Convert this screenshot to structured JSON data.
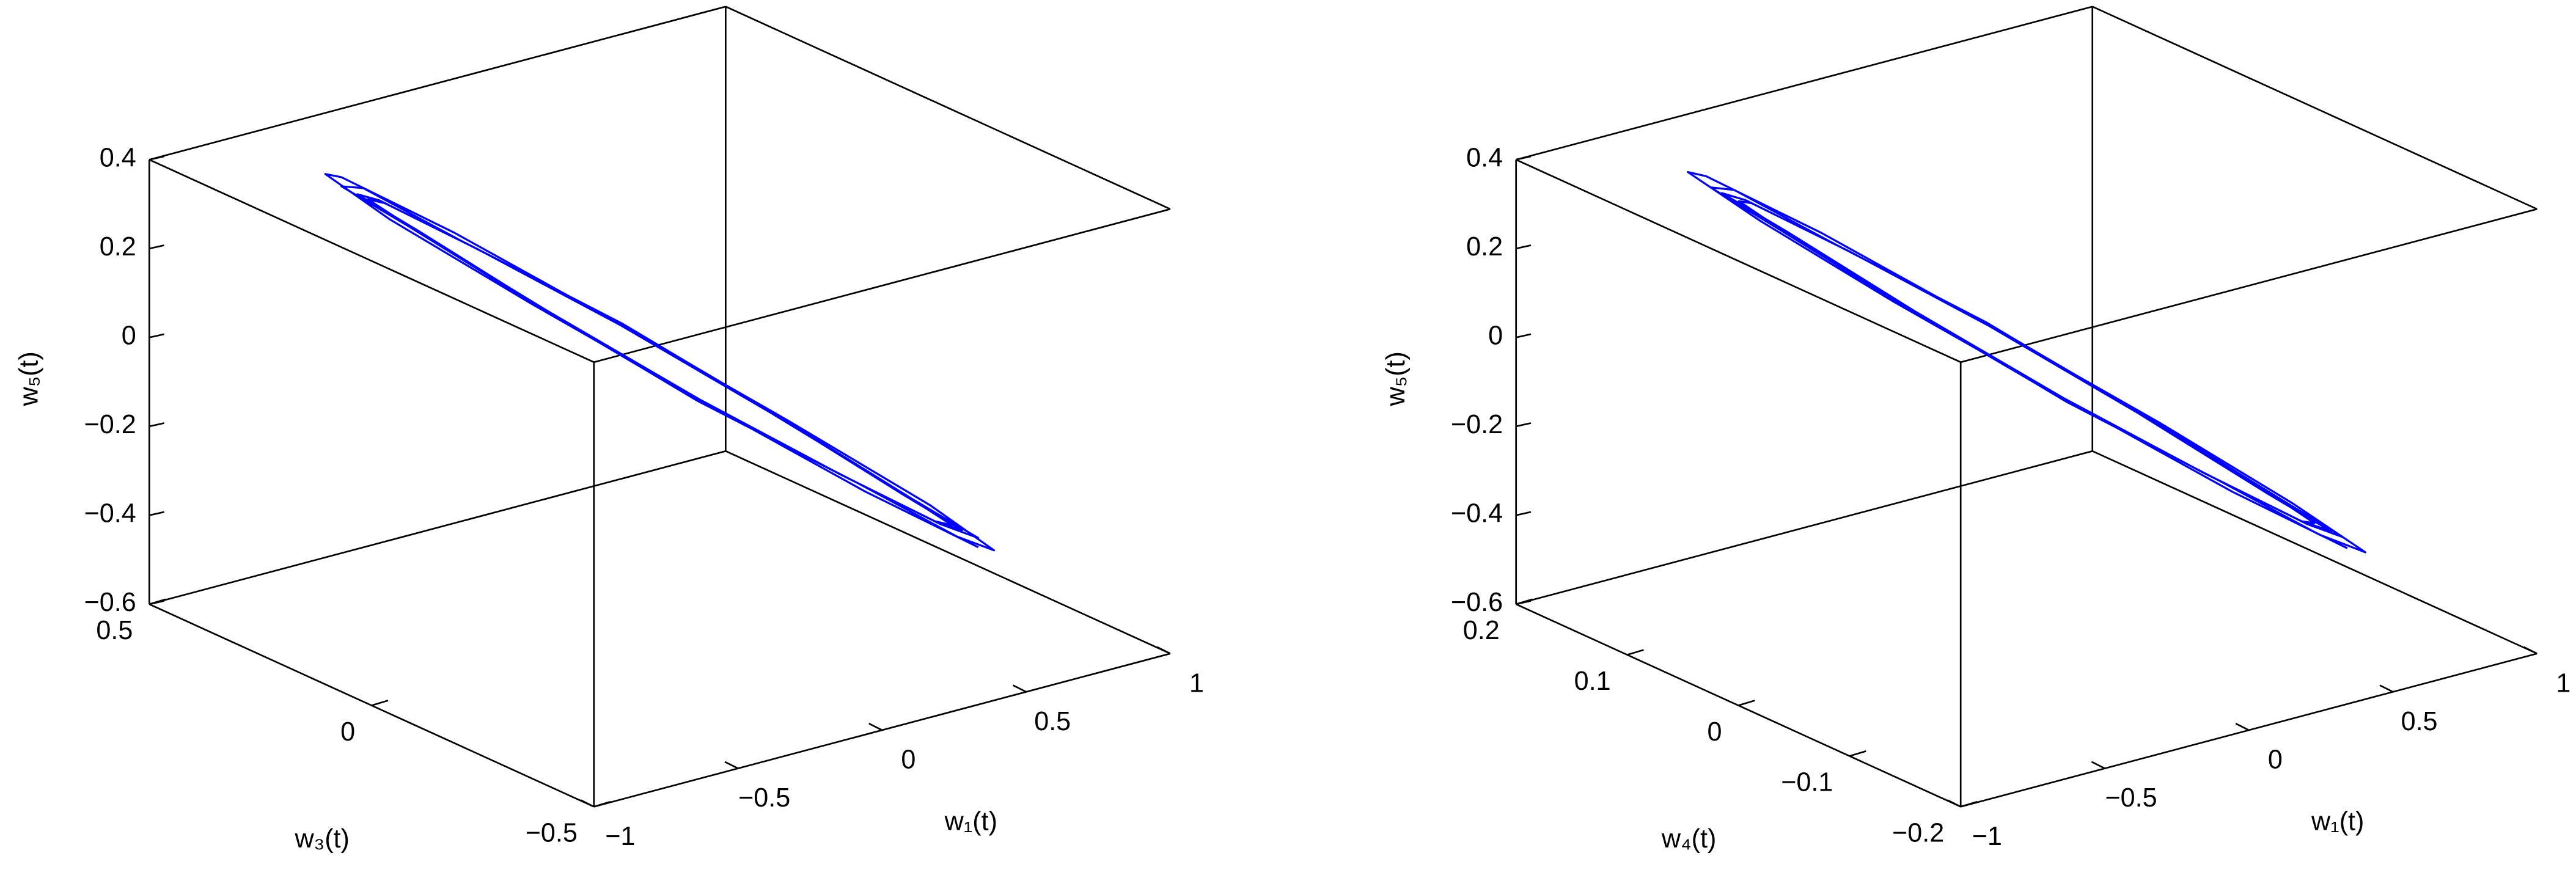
{
  "chart_data": [
    {
      "type": "line3d",
      "color": "#0000ff",
      "xlabel": "w₁(t)",
      "ylabel": "w₃(t)",
      "zlabel": "w₅(t)",
      "xlim": [
        -1,
        1
      ],
      "ylim": [
        -0.5,
        0.5
      ],
      "zlim": [
        -0.6,
        0.4
      ],
      "xticks": [
        {
          "value": -1,
          "label": "−1"
        },
        {
          "value": -0.5,
          "label": "−0.5"
        },
        0,
        0.5,
        1
      ],
      "yticks": [
        {
          "value": -0.5,
          "label": "−0.5"
        },
        0,
        0.5
      ],
      "zticks": [
        {
          "value": -0.6,
          "label": "−0.6"
        },
        {
          "value": -0.4,
          "label": "−0.4"
        },
        {
          "value": -0.2,
          "label": "−0.2"
        },
        0,
        0.2,
        0.4
      ],
      "x": [
        0.92,
        0.79,
        0.46,
        0,
        -0.46,
        -0.79,
        -0.92,
        -0.79,
        -0.46,
        0,
        0.46,
        0.79,
        0.86,
        0.75,
        0.43,
        0,
        -0.43,
        -0.75,
        -0.86,
        -0.75,
        -0.43,
        0,
        0.43,
        0.75,
        0.82,
        0.71,
        0.41,
        0,
        -0.41,
        -0.71,
        -0.82,
        -0.71,
        -0.41,
        0,
        0.41,
        0.71,
        0.8,
        0.69,
        0.4,
        0,
        -0.4,
        -0.69,
        -0.8,
        -0.69,
        -0.4,
        0,
        0.4,
        0.69,
        0.8
      ],
      "y": [
        -0.12,
        0.05,
        0.2,
        0.29,
        0.31,
        0.24,
        0.12,
        -0.05,
        -0.2,
        -0.29,
        -0.31,
        -0.24,
        -0.11,
        0.04,
        0.18,
        0.27,
        0.29,
        0.23,
        0.11,
        -0.04,
        -0.18,
        -0.27,
        -0.29,
        -0.23,
        -0.1,
        0.04,
        0.18,
        0.26,
        0.28,
        0.22,
        0.1,
        -0.04,
        -0.18,
        -0.26,
        -0.28,
        -0.22,
        -0.1,
        0.04,
        0.17,
        0.25,
        0.27,
        0.21,
        0.1,
        -0.04,
        -0.17,
        -0.25,
        -0.27,
        -0.21,
        -0.1
      ],
      "z": [
        -0.52,
        -0.45,
        -0.26,
        0,
        0.26,
        0.45,
        0.52,
        0.45,
        0.26,
        0,
        -0.26,
        -0.45,
        -0.49,
        -0.42,
        -0.25,
        0,
        0.25,
        0.42,
        0.49,
        0.42,
        0.25,
        0,
        -0.25,
        -0.42,
        -0.46,
        -0.4,
        -0.24,
        0,
        0.24,
        0.4,
        0.46,
        0.4,
        0.24,
        0,
        -0.24,
        -0.4,
        -0.45,
        -0.39,
        -0.23,
        0,
        0.23,
        0.39,
        0.45,
        0.39,
        0.23,
        0,
        -0.23,
        -0.39,
        -0.45
      ]
    },
    {
      "type": "line3d",
      "color": "#0000ff",
      "xlabel": "w₁(t)",
      "ylabel": "w₄(t)",
      "zlabel": "w₅(t)",
      "xlim": [
        -1,
        1
      ],
      "ylim": [
        -0.2,
        0.2
      ],
      "zlim": [
        -0.6,
        0.4
      ],
      "xticks": [
        {
          "value": -1,
          "label": "−1"
        },
        {
          "value": -0.5,
          "label": "−0.5"
        },
        0,
        0.5,
        1
      ],
      "yticks": [
        {
          "value": -0.2,
          "label": "−0.2"
        },
        {
          "value": -0.1,
          "label": "−0.1"
        },
        0,
        0.1,
        0.2
      ],
      "zticks": [
        {
          "value": -0.6,
          "label": "−0.6"
        },
        {
          "value": -0.4,
          "label": "−0.4"
        },
        {
          "value": -0.2,
          "label": "−0.2"
        },
        0,
        0.2,
        0.4
      ],
      "x": [
        0.92,
        0.79,
        0.46,
        0,
        -0.46,
        -0.79,
        -0.92,
        -0.79,
        -0.46,
        0,
        0.46,
        0.79,
        0.86,
        0.75,
        0.43,
        0,
        -0.43,
        -0.75,
        -0.86,
        -0.75,
        -0.43,
        0,
        0.43,
        0.75,
        0.82,
        0.71,
        0.41,
        0,
        -0.41,
        -0.71,
        -0.82,
        -0.71,
        -0.41,
        0,
        0.41,
        0.71,
        0.8,
        0.69,
        0.4,
        0,
        -0.4,
        -0.69,
        -0.8,
        -0.69,
        -0.4,
        0,
        0.4,
        0.69,
        0.8
      ],
      "y": [
        -0.05,
        0.02,
        0.08,
        0.12,
        0.12,
        0.1,
        0.05,
        -0.02,
        -0.08,
        -0.12,
        -0.12,
        -0.1,
        -0.04,
        0.02,
        0.07,
        0.11,
        0.12,
        0.09,
        0.04,
        -0.02,
        -0.07,
        -0.11,
        -0.12,
        -0.09,
        -0.04,
        0.02,
        0.07,
        0.1,
        0.11,
        0.09,
        0.04,
        -0.02,
        -0.07,
        -0.1,
        -0.11,
        -0.09,
        -0.04,
        0.02,
        0.07,
        0.1,
        0.11,
        0.08,
        0.04,
        -0.02,
        -0.07,
        -0.1,
        -0.11,
        -0.08,
        -0.04
      ],
      "z": [
        -0.52,
        -0.45,
        -0.26,
        0,
        0.26,
        0.45,
        0.52,
        0.45,
        0.26,
        0,
        -0.26,
        -0.45,
        -0.49,
        -0.42,
        -0.25,
        0,
        0.25,
        0.42,
        0.49,
        0.42,
        0.25,
        0,
        -0.25,
        -0.42,
        -0.46,
        -0.4,
        -0.24,
        0,
        0.24,
        0.4,
        0.46,
        0.4,
        0.24,
        0,
        -0.24,
        -0.4,
        -0.45,
        -0.39,
        -0.23,
        0,
        0.23,
        0.39,
        0.45,
        0.39,
        0.23,
        0,
        -0.23,
        -0.39,
        -0.45
      ]
    }
  ]
}
